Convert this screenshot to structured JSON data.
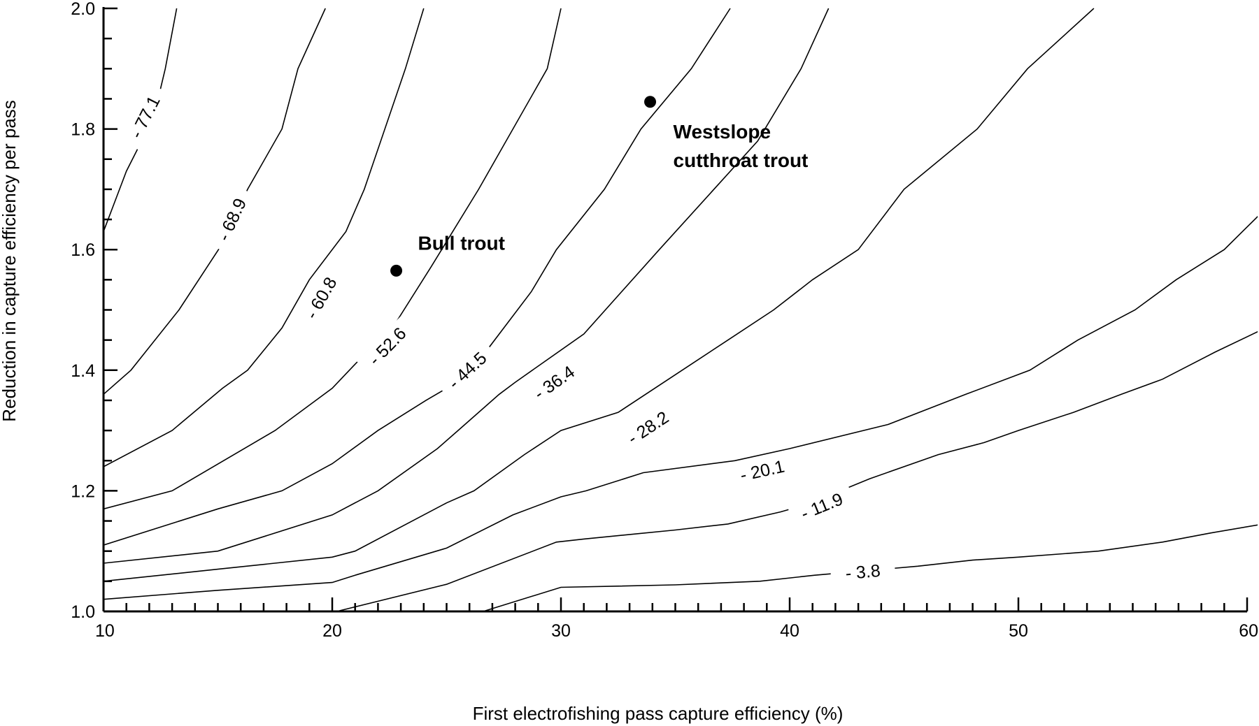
{
  "chart_data": {
    "type": "contour",
    "title": "",
    "xlabel": "First electrofishing pass capture efficiency (%)",
    "ylabel": "Reduction in capture efficiency per pass",
    "xlim": [
      10,
      60
    ],
    "ylim": [
      1.0,
      2.0
    ],
    "x_ticks": [
      "10",
      "20",
      "30",
      "40",
      "50",
      "60"
    ],
    "y_ticks": [
      "1.0",
      "1.2",
      "1.4",
      "1.6",
      "1.8",
      "2.0"
    ],
    "grid": false,
    "contours": [
      {
        "level": "- 77.1",
        "label_at": [
          11.8,
          1.82
        ],
        "points": [
          [
            10,
            1.63
          ],
          [
            10.7,
            1.7
          ],
          [
            11.0,
            1.73
          ],
          [
            12.2,
            1.82
          ],
          [
            12.7,
            1.9
          ],
          [
            13.2,
            2.0
          ]
        ]
      },
      {
        "level": "- 68.9",
        "label_at": [
          15.6,
          1.65
        ],
        "points": [
          [
            10,
            1.36
          ],
          [
            11.2,
            1.4
          ],
          [
            13.3,
            1.5
          ],
          [
            15.2,
            1.61
          ],
          [
            16.3,
            1.7
          ],
          [
            17.8,
            1.8
          ],
          [
            18.5,
            1.9
          ],
          [
            19.7,
            2.0
          ]
        ]
      },
      {
        "level": "- 60.8",
        "label_at": [
          19.5,
          1.52
        ],
        "points": [
          [
            10,
            1.24
          ],
          [
            13.0,
            1.3
          ],
          [
            15.2,
            1.37
          ],
          [
            16.3,
            1.4
          ],
          [
            17.8,
            1.47
          ],
          [
            19.0,
            1.55
          ],
          [
            20.6,
            1.63
          ],
          [
            21.4,
            1.7
          ],
          [
            22.3,
            1.8
          ],
          [
            23.2,
            1.9
          ],
          [
            24.0,
            2.0
          ]
        ]
      },
      {
        "level": "- 52.6",
        "label_at": [
          22.4,
          1.44
        ],
        "points": [
          [
            10,
            1.17
          ],
          [
            13.0,
            1.2
          ],
          [
            17.5,
            1.3
          ],
          [
            20.0,
            1.37
          ],
          [
            21.0,
            1.41
          ],
          [
            22.8,
            1.48
          ],
          [
            24.3,
            1.57
          ],
          [
            26.4,
            1.7
          ],
          [
            29.4,
            1.9
          ],
          [
            30.0,
            2.0
          ]
        ]
      },
      {
        "level": "- 44.5",
        "label_at": [
          25.9,
          1.4
        ],
        "points": [
          [
            10,
            1.11
          ],
          [
            15.0,
            1.17
          ],
          [
            17.8,
            1.2
          ],
          [
            20.0,
            1.245
          ],
          [
            22.0,
            1.3
          ],
          [
            24.1,
            1.35
          ],
          [
            25.0,
            1.37
          ],
          [
            26.7,
            1.43
          ],
          [
            28.7,
            1.53
          ],
          [
            29.8,
            1.6
          ],
          [
            31.9,
            1.7
          ],
          [
            33.5,
            1.8
          ],
          [
            35.7,
            1.9
          ],
          [
            37.4,
            2.0
          ]
        ]
      },
      {
        "level": "- 36.4",
        "label_at": [
          29.7,
          1.38
        ],
        "points": [
          [
            10,
            1.08
          ],
          [
            15.0,
            1.1
          ],
          [
            20.0,
            1.16
          ],
          [
            22.0,
            1.2
          ],
          [
            24.6,
            1.27
          ],
          [
            25.5,
            1.3
          ],
          [
            27.3,
            1.36
          ],
          [
            28.0,
            1.38
          ],
          [
            31.0,
            1.46
          ],
          [
            34.3,
            1.6
          ],
          [
            38.6,
            1.78
          ],
          [
            40.5,
            1.9
          ],
          [
            41.7,
            2.0
          ]
        ]
      },
      {
        "level": "- 28.2",
        "label_at": [
          33.8,
          1.305
        ],
        "points": [
          [
            10,
            1.05
          ],
          [
            15.0,
            1.07
          ],
          [
            20.0,
            1.09
          ],
          [
            21.0,
            1.1
          ],
          [
            25.0,
            1.18
          ],
          [
            26.2,
            1.2
          ],
          [
            28.4,
            1.26
          ],
          [
            30.0,
            1.3
          ],
          [
            32.5,
            1.33
          ],
          [
            35.3,
            1.4
          ],
          [
            37.3,
            1.45
          ],
          [
            39.3,
            1.5
          ],
          [
            41.0,
            1.55
          ],
          [
            43.0,
            1.6
          ],
          [
            45.0,
            1.7
          ],
          [
            48.2,
            1.8
          ],
          [
            50.4,
            1.9
          ],
          [
            53.3,
            2.0
          ]
        ]
      },
      {
        "level": "- 20.1",
        "label_at": [
          38.8,
          1.234
        ],
        "points": [
          [
            10,
            1.02
          ],
          [
            15.0,
            1.035
          ],
          [
            20.0,
            1.048
          ],
          [
            21.0,
            1.06
          ],
          [
            25.0,
            1.105
          ],
          [
            27.9,
            1.16
          ],
          [
            30.0,
            1.19
          ],
          [
            31.1,
            1.2
          ],
          [
            33.6,
            1.23
          ],
          [
            37.6,
            1.25
          ],
          [
            40.0,
            1.27
          ],
          [
            44.3,
            1.31
          ],
          [
            47.7,
            1.36
          ],
          [
            50.5,
            1.4
          ],
          [
            52.6,
            1.45
          ],
          [
            55.1,
            1.5
          ],
          [
            56.9,
            1.55
          ],
          [
            59.0,
            1.6
          ],
          [
            60.6,
            1.66
          ],
          [
            62.0,
            1.71
          ],
          [
            64.5,
            1.8
          ],
          [
            66.4,
            1.87
          ],
          [
            69.5,
            1.93
          ]
        ]
      },
      {
        "level": "- 11.9",
        "label_at": [
          41.4,
          1.175
        ],
        "points": [
          [
            16.0,
            1.0
          ],
          [
            20.2,
            1.0
          ],
          [
            25.0,
            1.045
          ],
          [
            29.8,
            1.115
          ],
          [
            31.0,
            1.12
          ],
          [
            35.0,
            1.135
          ],
          [
            37.3,
            1.145
          ],
          [
            39.6,
            1.165
          ],
          [
            40.8,
            1.178
          ],
          [
            43.5,
            1.22
          ],
          [
            46.5,
            1.26
          ],
          [
            48.5,
            1.28
          ],
          [
            50.0,
            1.3
          ],
          [
            52.4,
            1.33
          ],
          [
            54.5,
            1.36
          ],
          [
            56.3,
            1.385
          ],
          [
            58.6,
            1.43
          ],
          [
            60.8,
            1.47
          ],
          [
            63.0,
            1.5
          ]
        ]
      },
      {
        "level": "- 3.8",
        "label_at": [
          43.2,
          1.066
        ],
        "points": [
          [
            26.6,
            1.0
          ],
          [
            30.0,
            1.04
          ],
          [
            32.5,
            1.042
          ],
          [
            35.0,
            1.044
          ],
          [
            38.7,
            1.05
          ],
          [
            41.1,
            1.06
          ],
          [
            45.6,
            1.075
          ],
          [
            48.0,
            1.085
          ],
          [
            50.0,
            1.09
          ],
          [
            53.5,
            1.1
          ],
          [
            56.3,
            1.115
          ],
          [
            58.4,
            1.13
          ],
          [
            60.7,
            1.145
          ],
          [
            62.9,
            1.16
          ],
          [
            64.7,
            1.175
          ]
        ]
      }
    ],
    "points": [
      {
        "name": "Bull trout",
        "x": 22.8,
        "y": 1.565,
        "label_pos": "upper-right"
      },
      {
        "name": "Westslope cutthroat trout",
        "x": 33.9,
        "y": 1.845,
        "label_pos": "lower-right"
      }
    ]
  }
}
